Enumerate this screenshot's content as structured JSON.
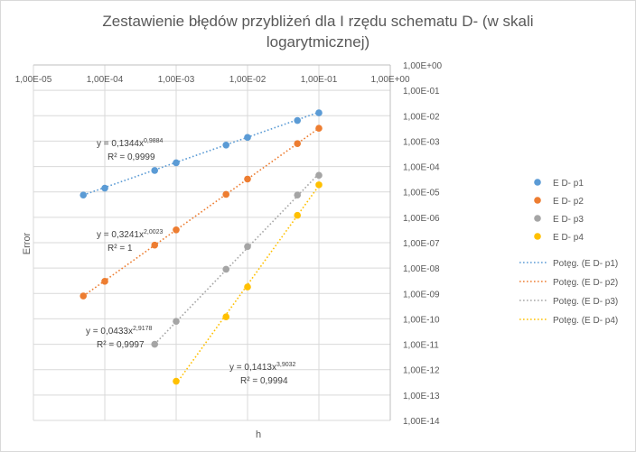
{
  "chart_data": {
    "type": "scatter",
    "title_line1": "Zestawienie błędów przybliżeń dla I rzędu schematu D- (w skali",
    "title_line2": "logarytmicznej)",
    "xlabel": "h",
    "ylabel": "Error",
    "x_scale": "log",
    "y_scale": "log",
    "xlim": [
      1e-05,
      1
    ],
    "ylim": [
      1e-14,
      1
    ],
    "grid": true,
    "legend_position": "right",
    "x_ticks": [
      "1,00E-05",
      "1,00E-04",
      "1,00E-03",
      "1,00E-02",
      "1,00E-01",
      "1,00E+00"
    ],
    "y_ticks": [
      "1,00E+00",
      "1,00E-01",
      "1,00E-02",
      "1,00E-03",
      "1,00E-04",
      "1,00E-05",
      "1,00E-06",
      "1,00E-07",
      "1,00E-08",
      "1,00E-09",
      "1,00E-10",
      "1,00E-11",
      "1,00E-12",
      "1,00E-13",
      "1,00E-14"
    ],
    "series": [
      {
        "name": "E D- p1",
        "color": "#5b9bd5",
        "x": [
          5e-05,
          0.0001,
          0.0005,
          0.001,
          0.005,
          0.01,
          0.05,
          0.1
        ],
        "y": [
          7.5e-06,
          1.4e-05,
          7e-05,
          0.00014,
          0.0007,
          0.0014,
          0.0065,
          0.013
        ]
      },
      {
        "name": "E D- p2",
        "color": "#ed7d31",
        "x": [
          5e-05,
          0.0001,
          0.0005,
          0.001,
          0.005,
          0.01,
          0.05,
          0.1
        ],
        "y": [
          8e-10,
          3e-09,
          8e-08,
          3.2e-07,
          8e-06,
          3.2e-05,
          0.0008,
          0.0032
        ]
      },
      {
        "name": "E D- p3",
        "color": "#a5a5a5",
        "x": [
          0.0005,
          0.001,
          0.005,
          0.01,
          0.05,
          0.1
        ],
        "y": [
          1e-11,
          8e-11,
          9e-09,
          7e-08,
          7.5e-06,
          4.5e-05
        ]
      },
      {
        "name": "E D- p4",
        "color": "#ffc000",
        "x": [
          0.001,
          0.005,
          0.01,
          0.05,
          0.1
        ],
        "y": [
          3.5e-13,
          1.2e-10,
          1.8e-09,
          1.2e-06,
          1.9e-05
        ]
      }
    ],
    "trendlines": [
      {
        "name": "Potęg. (E D- p1)",
        "color": "#5b9bd5",
        "coef": 0.1344,
        "exp": 0.9884,
        "x_range": [
          5e-05,
          0.1
        ]
      },
      {
        "name": "Potęg. (E D- p2)",
        "color": "#ed7d31",
        "coef": 0.3241,
        "exp": 2.0023,
        "x_range": [
          5e-05,
          0.1
        ]
      },
      {
        "name": "Potęg. (E D- p3)",
        "color": "#a5a5a5",
        "coef": 0.0433,
        "exp": 2.9178,
        "x_range": [
          0.0005,
          0.1
        ]
      },
      {
        "name": "Potęg. (E D- p4)",
        "color": "#ffc000",
        "coef": 0.1413,
        "exp": 3.9032,
        "x_range": [
          0.001,
          0.1
        ]
      }
    ],
    "annotations": [
      {
        "eq_base": "y = 0,1344x",
        "eq_exp": "0,9884",
        "r2": "R² = 0,9999"
      },
      {
        "eq_base": "y = 0,3241x",
        "eq_exp": "2,0023",
        "r2": "R² = 1"
      },
      {
        "eq_base": "y = 0,0433x",
        "eq_exp": "2,9178",
        "r2": "R² = 0,9997"
      },
      {
        "eq_base": "y = 0,1413x",
        "eq_exp": "3,9032",
        "r2": "R² = 0,9994"
      }
    ]
  }
}
